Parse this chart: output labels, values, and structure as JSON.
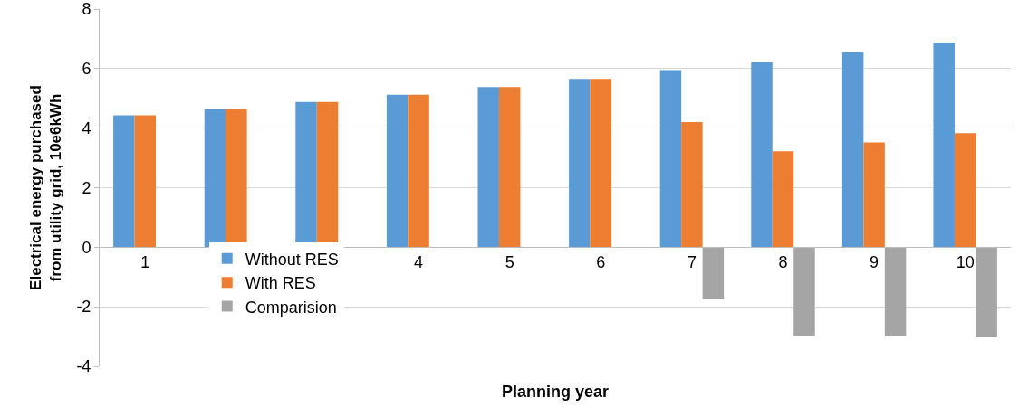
{
  "chart_data": {
    "type": "bar",
    "xlabel": "Planning year",
    "ylabel": "Electrical energy purchased from utility grid, 10e6kWh",
    "categories": [
      "1",
      null,
      null,
      "4",
      "5",
      "6",
      "7",
      "8",
      "9",
      "10"
    ],
    "series": [
      {
        "name": "Without RES",
        "color": "#5b9bd5",
        "values": [
          4.43,
          4.65,
          4.88,
          5.12,
          5.38,
          5.65,
          5.95,
          6.22,
          6.55,
          6.87
        ]
      },
      {
        "name": "With RES",
        "color": "#ed7d31",
        "values": [
          4.43,
          4.65,
          4.88,
          5.12,
          5.38,
          5.65,
          4.2,
          3.22,
          3.52,
          3.83
        ]
      },
      {
        "name": "Comparision",
        "color": "#a5a5a5",
        "values": [
          0,
          0,
          0,
          0,
          0,
          0,
          -1.75,
          -3.0,
          -3.0,
          -3.03
        ]
      }
    ],
    "ylim": [
      -4,
      8
    ],
    "yticks": [
      -4,
      -2,
      0,
      2,
      4,
      6,
      8
    ],
    "grid": "y",
    "legend": "bottom left"
  }
}
